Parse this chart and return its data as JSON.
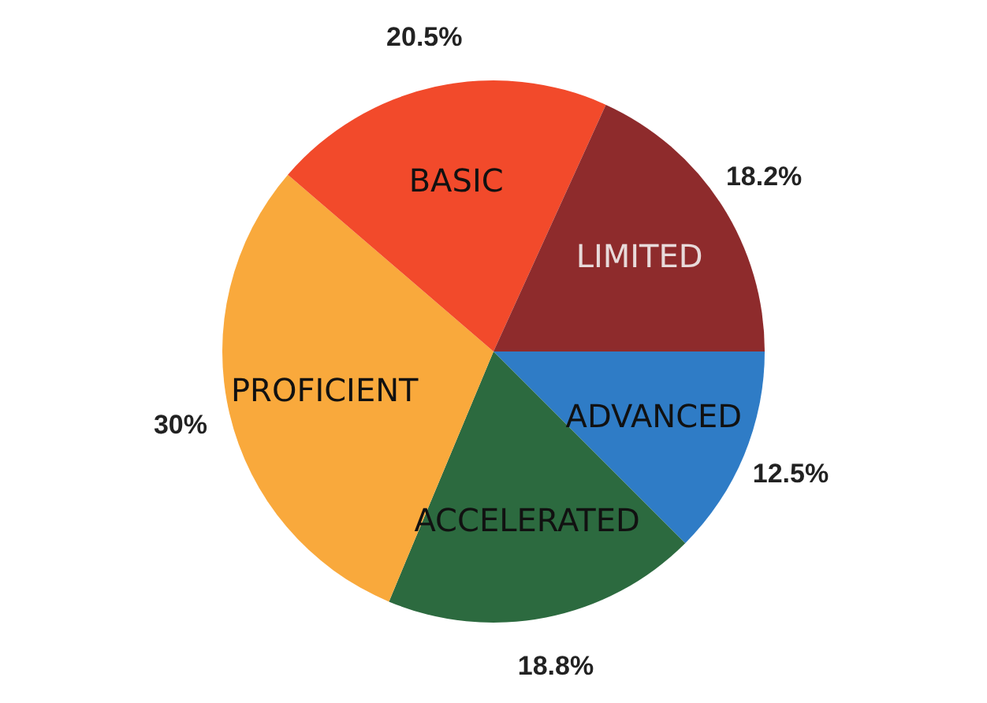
{
  "chart_data": {
    "type": "pie",
    "categories": [
      "ADVANCED",
      "ACCELERATED",
      "PROFICIENT",
      "BASIC",
      "LIMITED"
    ],
    "values": [
      12.5,
      18.8,
      30,
      20.5,
      18.2
    ],
    "colors": [
      "#2f7cc6",
      "#2c6a3f",
      "#f9a93c",
      "#f24a2b",
      "#8e2b2c"
    ],
    "value_labels": [
      "12.5%",
      "18.8%",
      "30%",
      "20.5%",
      "18.2%"
    ]
  }
}
